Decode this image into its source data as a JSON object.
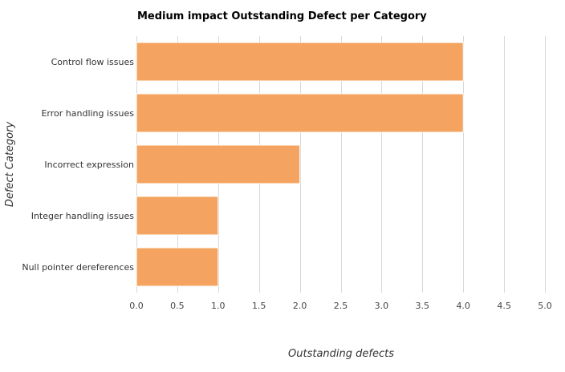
{
  "chart_data": {
    "type": "bar",
    "orientation": "horizontal",
    "title": "Medium impact Outstanding Defect per Category",
    "xlabel": "Outstanding defects",
    "ylabel": "Defect Category",
    "categories": [
      "Control flow issues",
      "Error handling issues",
      "Incorrect expression",
      "Integer handling issues",
      "Null pointer dereferences"
    ],
    "values": [
      4,
      4,
      2,
      1,
      1
    ],
    "xlim": [
      0,
      5
    ],
    "xticks": [
      "0.0",
      "0.5",
      "1.0",
      "1.5",
      "2.0",
      "2.5",
      "3.0",
      "3.5",
      "4.0",
      "4.5",
      "5.0"
    ],
    "grid": true,
    "legend": "none",
    "bar_color": "#f4a460"
  }
}
